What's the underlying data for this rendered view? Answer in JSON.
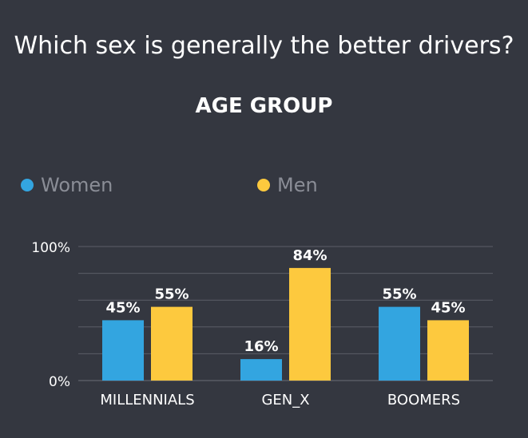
{
  "chart_data": {
    "type": "bar",
    "title": "Which sex is generally the better drivers?",
    "subtitle": "AGE GROUP",
    "categories": [
      "MILLENNIALS",
      "GEN_X",
      "BOOMERS"
    ],
    "series": [
      {
        "name": "Women",
        "values": [
          45,
          16,
          55
        ],
        "labels": [
          "45%",
          "16%",
          "55%"
        ],
        "color": "#33a5e0"
      },
      {
        "name": "Men",
        "values": [
          55,
          84,
          45
        ],
        "labels": [
          "55%",
          "84%",
          "45%"
        ],
        "color": "#fdc93e"
      }
    ],
    "ylim": [
      0,
      100
    ],
    "ytick_labels": [
      "0%",
      "100%"
    ],
    "legend_position": "top",
    "grid": true
  },
  "colors": {
    "background": "#343740",
    "text": "#ffffff",
    "legend_text": "#8a8d96",
    "gridline": "#5b5e67"
  }
}
